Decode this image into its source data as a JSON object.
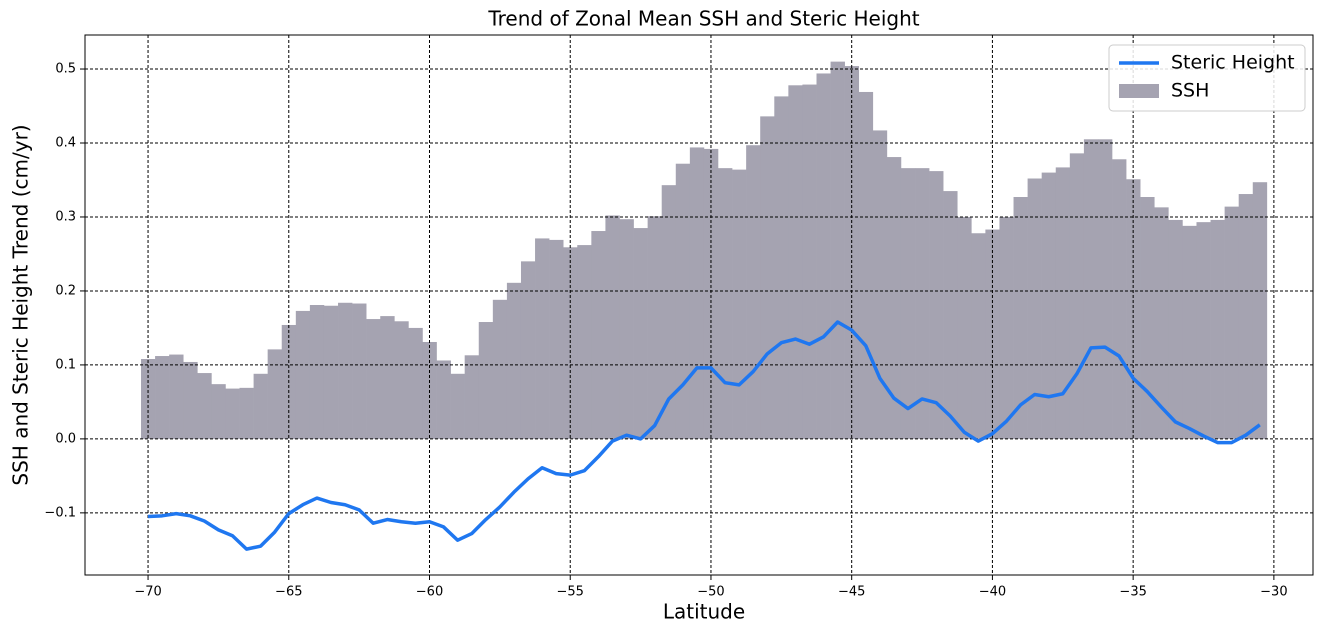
{
  "chart_data": {
    "type": "bar",
    "title": "Trend of Zonal Mean SSH and Steric Height",
    "xlabel": "Latitude",
    "ylabel": "SSH and Steric Height Trend (cm/yr)",
    "x": [
      -70,
      -69.5,
      -69,
      -68.5,
      -68,
      -67.5,
      -67,
      -66.5,
      -66,
      -65.5,
      -65,
      -64.5,
      -64,
      -63.5,
      -63,
      -62.5,
      -62,
      -61.5,
      -61,
      -60.5,
      -60,
      -59.5,
      -59,
      -58.5,
      -58,
      -57.5,
      -57,
      -56.5,
      -56,
      -55.5,
      -55,
      -54.5,
      -54,
      -53.5,
      -53,
      -52.5,
      -52,
      -51.5,
      -51,
      -50.5,
      -50,
      -49.5,
      -49,
      -48.5,
      -48,
      -47.5,
      -47,
      -46.5,
      -46,
      -45.5,
      -45,
      -44.5,
      -44,
      -43.5,
      -43,
      -42.5,
      -42,
      -41.5,
      -41,
      -40.5,
      -40,
      -39.5,
      -39,
      -38.5,
      -38,
      -37.5,
      -37,
      -36.5,
      -36,
      -35.5,
      -35,
      -34.5,
      -34,
      -33.5,
      -33,
      -32.5,
      -32,
      -31.5,
      -31,
      -30.5
    ],
    "series": [
      {
        "name": "Steric Height",
        "type": "line",
        "color": "#1f77f0",
        "values": [
          -0.105,
          -0.104,
          -0.101,
          -0.104,
          -0.111,
          -0.123,
          -0.131,
          -0.149,
          -0.145,
          -0.126,
          -0.101,
          -0.089,
          -0.08,
          -0.086,
          -0.089,
          -0.096,
          -0.114,
          -0.109,
          -0.112,
          -0.114,
          -0.112,
          -0.119,
          -0.137,
          -0.128,
          -0.109,
          -0.092,
          -0.072,
          -0.054,
          -0.039,
          -0.047,
          -0.049,
          -0.043,
          -0.024,
          -0.003,
          0.005,
          0.0,
          0.018,
          0.054,
          0.073,
          0.096,
          0.096,
          0.076,
          0.073,
          0.091,
          0.115,
          0.13,
          0.135,
          0.128,
          0.138,
          0.158,
          0.147,
          0.126,
          0.082,
          0.055,
          0.041,
          0.054,
          0.049,
          0.031,
          0.009,
          -0.003,
          0.007,
          0.024,
          0.046,
          0.06,
          0.057,
          0.061,
          0.088,
          0.123,
          0.124,
          0.112,
          0.082,
          0.064,
          0.043,
          0.023,
          0.014,
          0.004,
          -0.005,
          -0.005,
          0.005,
          0.019
        ]
      },
      {
        "name": "SSH",
        "type": "bar",
        "color": "#a5a3b1",
        "values": [
          0.108,
          0.112,
          0.114,
          0.104,
          0.089,
          0.074,
          0.068,
          0.069,
          0.088,
          0.121,
          0.154,
          0.173,
          0.181,
          0.18,
          0.184,
          0.183,
          0.162,
          0.166,
          0.159,
          0.15,
          0.131,
          0.106,
          0.088,
          0.113,
          0.158,
          0.188,
          0.211,
          0.24,
          0.271,
          0.269,
          0.259,
          0.262,
          0.281,
          0.302,
          0.297,
          0.285,
          0.301,
          0.343,
          0.372,
          0.394,
          0.392,
          0.366,
          0.364,
          0.397,
          0.436,
          0.463,
          0.478,
          0.479,
          0.494,
          0.51,
          0.504,
          0.469,
          0.417,
          0.381,
          0.366,
          0.366,
          0.362,
          0.335,
          0.3,
          0.278,
          0.283,
          0.3,
          0.327,
          0.352,
          0.36,
          0.367,
          0.386,
          0.405,
          0.405,
          0.378,
          0.351,
          0.327,
          0.313,
          0.296,
          0.288,
          0.293,
          0.296,
          0.314,
          0.331,
          0.347
        ]
      }
    ],
    "xlim": [
      -72.24,
      -28.61
    ],
    "ylim": [
      -0.184,
      0.546
    ],
    "xticks": [
      {
        "value": -70,
        "label": "−70"
      },
      {
        "value": -65,
        "label": "−65"
      },
      {
        "value": -60,
        "label": "−60"
      },
      {
        "value": -55,
        "label": "−55"
      },
      {
        "value": -50,
        "label": "−50"
      },
      {
        "value": -45,
        "label": "−45"
      },
      {
        "value": -40,
        "label": "−40"
      },
      {
        "value": -35,
        "label": "−35"
      },
      {
        "value": -30,
        "label": "−30"
      }
    ],
    "yticks": [
      {
        "value": -0.1,
        "label": "−0.1"
      },
      {
        "value": 0,
        "label": "0.0"
      },
      0.1,
      0.2,
      0.3,
      0.4,
      0.5
    ],
    "grid": true,
    "legend": "upper right"
  }
}
